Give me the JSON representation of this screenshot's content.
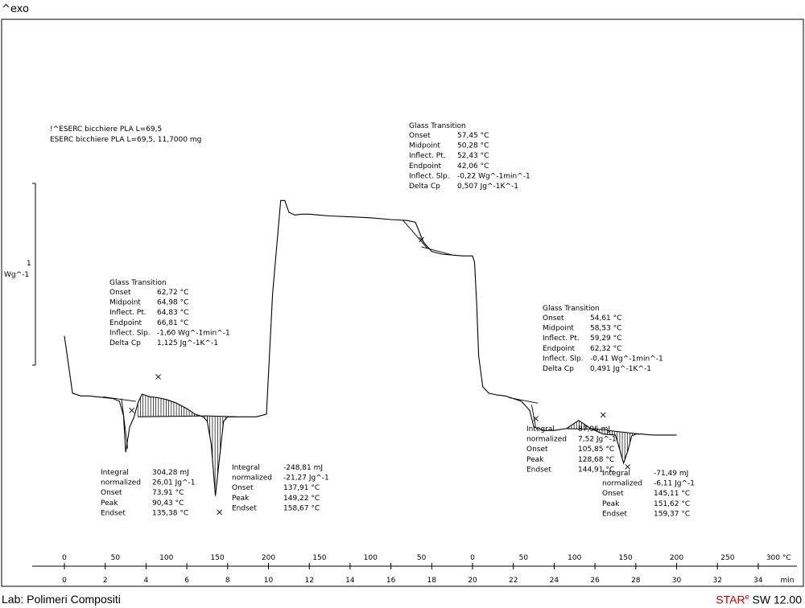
{
  "header": {
    "exo": "^exo"
  },
  "footer": {
    "lab": "Lab: Polimeri Compositi",
    "brand_star": "STAR",
    "brand_sup": "e",
    "brand_sw": " SW 12.00"
  },
  "colors": {
    "curve": "#000000",
    "brand": "#c00000"
  },
  "chart_data": {
    "type": "line",
    "samples": [
      "!^ESERC bicchiere PLA L=69,5",
      "ESERC bicchiere PLA L=69,5, 11,7000 mg"
    ],
    "yscale": {
      "label_value": "1",
      "label_unit": "Wg^-1"
    },
    "x_time": {
      "unit": "min",
      "ticks": [
        "0",
        "2",
        "4",
        "6",
        "8",
        "10",
        "12",
        "14",
        "16",
        "18",
        "20",
        "22",
        "24",
        "26",
        "28",
        "30",
        "32",
        "34"
      ]
    },
    "x_temp": {
      "unit": "°C",
      "ticks": [
        "0",
        "50",
        "100",
        "150",
        "200",
        "150",
        "100",
        "50",
        "0",
        "50",
        "100",
        "150",
        "200",
        "250",
        "300"
      ]
    },
    "series": [
      {
        "x_min": [
          0.0,
          0.4,
          0.8,
          1.2,
          1.6,
          2.0,
          2.4,
          2.7,
          2.9,
          3.0,
          3.2,
          3.4,
          3.6,
          3.8,
          4.2,
          4.6,
          5.0,
          5.5,
          6.0,
          6.4,
          6.8,
          7.0,
          7.2,
          7.4,
          7.6,
          7.8,
          8.0,
          8.3,
          8.8,
          9.4,
          9.9,
          10.2,
          10.6,
          10.8,
          11.0,
          11.3,
          11.6,
          12.0,
          12.5,
          13.0,
          14.0,
          15.0,
          16.0,
          16.8,
          17.2,
          17.6,
          18.0,
          18.5,
          19.0,
          19.5,
          20.0,
          20.1,
          20.2,
          20.3,
          20.5,
          20.8,
          21.2,
          21.6,
          22.0,
          22.4,
          22.8,
          23.0,
          23.2,
          23.5,
          24.0,
          24.6,
          25.2,
          25.8,
          26.4,
          27.0,
          27.2,
          27.4,
          27.6,
          27.8,
          28.0,
          28.3,
          28.8,
          29.4,
          30.0
        ],
        "y_wg": [
          0.64,
          0.01,
          -0.02,
          -0.02,
          -0.03,
          -0.04,
          -0.05,
          -0.08,
          -0.24,
          -0.64,
          -0.36,
          -0.26,
          -0.1,
          0.0,
          -0.03,
          -0.04,
          -0.06,
          -0.1,
          -0.16,
          -0.22,
          -0.25,
          -0.3,
          -0.56,
          -1.12,
          -0.7,
          -0.3,
          -0.25,
          -0.25,
          -0.25,
          -0.25,
          -0.22,
          1.1,
          2.13,
          2.13,
          2.0,
          1.97,
          1.98,
          1.98,
          1.97,
          1.96,
          1.95,
          1.94,
          1.92,
          1.91,
          1.89,
          1.67,
          1.57,
          1.54,
          1.53,
          1.52,
          1.52,
          1.45,
          1.0,
          0.42,
          0.08,
          0.01,
          -0.01,
          -0.02,
          -0.05,
          -0.08,
          -0.18,
          -0.36,
          -0.38,
          -0.4,
          -0.4,
          -0.38,
          -0.29,
          -0.38,
          -0.44,
          -0.45,
          -0.6,
          -0.76,
          -0.63,
          -0.46,
          -0.44,
          -0.44,
          -0.45,
          -0.45,
          -0.45
        ]
      }
    ],
    "annotations": [
      {
        "title": "Glass Transition",
        "rows": [
          [
            "Onset",
            "62,72 °C"
          ],
          [
            "Midpoint",
            "64,98 °C"
          ],
          [
            "Inflect. Pt.",
            "64,83 °C"
          ],
          [
            "Endpoint",
            "66,81 °C"
          ],
          [
            "Inflect. Slp.",
            "-1,60 Wg^-1min^-1"
          ],
          [
            "Delta Cp",
            "1,125 Jg^-1K^-1"
          ]
        ]
      },
      {
        "title": "Glass Transition",
        "rows": [
          [
            "Onset",
            "57,45 °C"
          ],
          [
            "Midpoint",
            "50,28 °C"
          ],
          [
            "Inflect. Pt.",
            "52,43 °C"
          ],
          [
            "Endpoint",
            "42,06 °C"
          ],
          [
            "Inflect. Slp.",
            "-0,22 Wg^-1min^-1"
          ],
          [
            "Delta Cp",
            "0,507 Jg^-1K^-1"
          ]
        ]
      },
      {
        "title": "Glass Transition",
        "rows": [
          [
            "Onset",
            "54,61 °C"
          ],
          [
            "Midpoint",
            "58,53 °C"
          ],
          [
            "Inflect. Pt.",
            "59,29 °C"
          ],
          [
            "Endpoint",
            "62,32 °C"
          ],
          [
            "Inflect. Slp.",
            "-0,41 Wg^-1min^-1"
          ],
          [
            "Delta Cp",
            "0,491 Jg^-1K^-1"
          ]
        ]
      },
      {
        "rows": [
          [
            "Integral",
            "304,28 mJ"
          ],
          [
            "  normalized",
            "26,01 Jg^-1"
          ],
          [
            "Onset",
            "73,91 °C"
          ],
          [
            "Peak",
            "90,43 °C"
          ],
          [
            "Endset",
            "135,38 °C"
          ]
        ]
      },
      {
        "rows": [
          [
            "Integral",
            "-248,81 mJ"
          ],
          [
            "  normalized",
            "-21,27 Jg^-1"
          ],
          [
            "Onset",
            "137,91 °C"
          ],
          [
            "Peak",
            "149,22 °C"
          ],
          [
            "Endset",
            "158,67 °C"
          ]
        ]
      },
      {
        "rows": [
          [
            "Integral",
            "87,96 mJ"
          ],
          [
            "  normalized",
            "7,52 Jg^-1"
          ],
          [
            "Onset",
            "105,85 °C"
          ],
          [
            "Peak",
            "128,68 °C"
          ],
          [
            "Endset",
            "144,91 °C"
          ]
        ]
      },
      {
        "rows": [
          [
            "Integral",
            "-71,49 mJ"
          ],
          [
            "  normalized",
            "-6,11 Jg^-1"
          ],
          [
            "Onset",
            "145,11 °C"
          ],
          [
            "Peak",
            "151,62 °C"
          ],
          [
            "Endset",
            "159,37 °C"
          ]
        ]
      }
    ]
  }
}
